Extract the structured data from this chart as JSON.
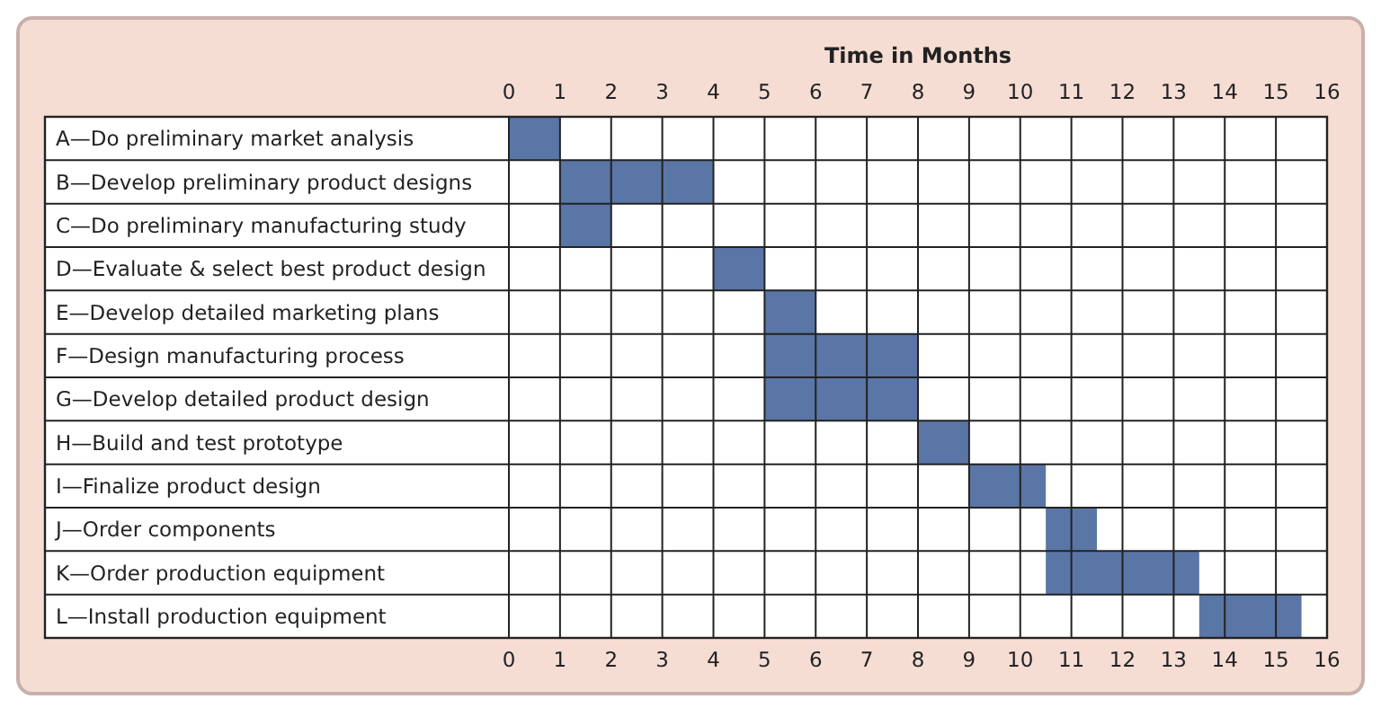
{
  "chart_data": {
    "type": "bar",
    "orientation": "horizontal",
    "xlabel": "Time in Months",
    "categories": [
      "A—Do preliminary market analysis",
      "B—Develop preliminary product designs",
      "C—Do preliminary manufacturing study",
      "D—Evaluate & select best product design",
      "E—Develop detailed marketing plans",
      "F—Design manufacturing process",
      "G—Develop detailed product design",
      "H—Build and test prototype",
      "I—Finalize product design",
      "J—Order components",
      "K—Order production equipment",
      "L—Install production equipment"
    ],
    "base": [
      0,
      1,
      1,
      4,
      5,
      5,
      5,
      8,
      9,
      10.5,
      10.5,
      13.5
    ],
    "values": [
      1,
      3,
      1,
      1,
      1,
      3,
      3,
      1,
      1.5,
      1,
      3,
      2
    ],
    "color": "#5a76a6",
    "xlim": [
      0,
      16
    ],
    "xticks": [
      0,
      1,
      2,
      3,
      4,
      5,
      6,
      7,
      8,
      9,
      10,
      11,
      12,
      13,
      14,
      15,
      16
    ],
    "x2lim": [
      0,
      16
    ],
    "x2ticks": [
      0,
      1,
      2,
      3,
      4,
      5,
      6,
      7,
      8,
      9,
      10,
      11,
      12,
      13,
      14,
      15,
      16
    ],
    "grid": true
  }
}
